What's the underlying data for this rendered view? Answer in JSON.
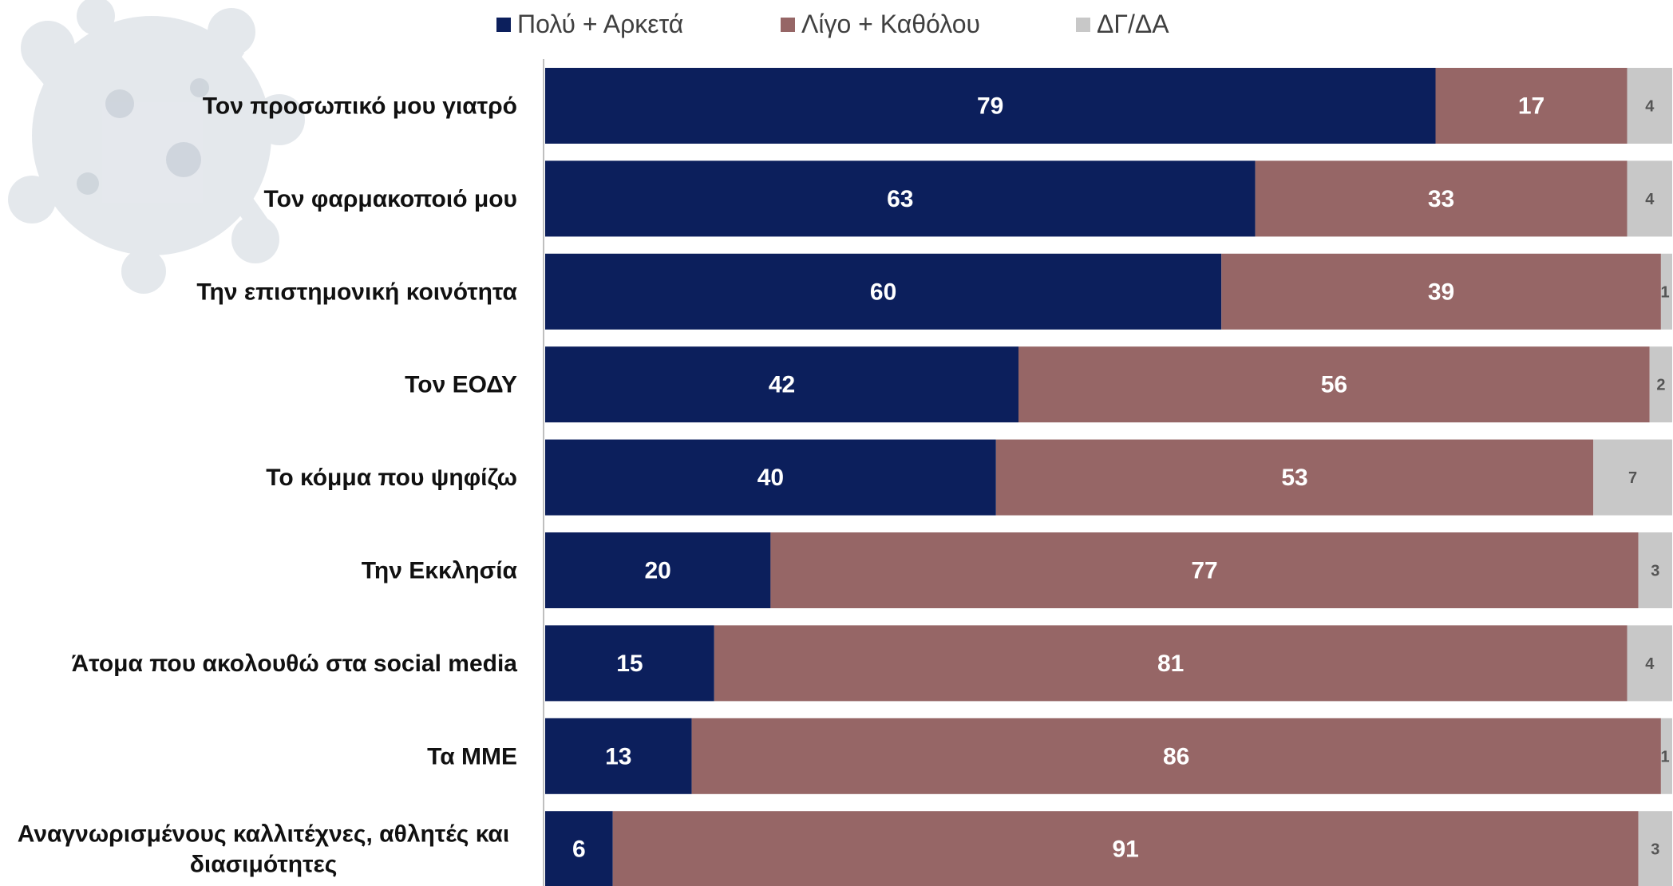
{
  "colors": {
    "series1": "#0c1f5c",
    "series2": "#966666",
    "series3": "#c8c8c8",
    "axis": "#bfbfbf",
    "virus": "#cfd6de"
  },
  "chart_data": {
    "type": "bar",
    "orientation": "horizontal",
    "stacked": true,
    "title": "",
    "xlabel": "",
    "ylabel": "",
    "xlim": [
      0,
      100
    ],
    "grid": false,
    "legend_position": "top",
    "categories": [
      "Τον προσωπικό μου γιατρό",
      "Τον φαρμακοποιό μου",
      "Την επιστημονική κοινότητα",
      "Τον ΕΟΔΥ",
      "Το κόμμα που ψηφίζω",
      "Την Εκκλησία",
      "Άτομα που ακολουθώ στα social media",
      "Τα ΜΜΕ",
      "Αναγνωρισμένους καλλιτέχνες, αθλητές και διασιμότητες"
    ],
    "category_lines": [
      [
        "Τον προσωπικό μου γιατρό"
      ],
      [
        "Τον φαρμακοποιό μου"
      ],
      [
        "Την επιστημονική κοινότητα"
      ],
      [
        "Τον ΕΟΔΥ"
      ],
      [
        "Το κόμμα που ψηφίζω"
      ],
      [
        "Την Εκκλησία"
      ],
      [
        "Άτομα που ακολουθώ στα social media"
      ],
      [
        "Τα ΜΜΕ"
      ],
      [
        "Αναγνωρισμένους καλλιτέχνες, αθλητές και",
        "διασιμότητες"
      ]
    ],
    "series": [
      {
        "name": "Πολύ + Αρκετά",
        "values": [
          79,
          63,
          60,
          42,
          40,
          20,
          15,
          13,
          6
        ]
      },
      {
        "name": "Λίγο + Καθόλου",
        "values": [
          17,
          33,
          39,
          56,
          53,
          77,
          81,
          86,
          91
        ]
      },
      {
        "name": "ΔΓ/ΔΑ",
        "values": [
          4,
          4,
          1,
          2,
          7,
          3,
          4,
          1,
          3
        ]
      }
    ]
  }
}
